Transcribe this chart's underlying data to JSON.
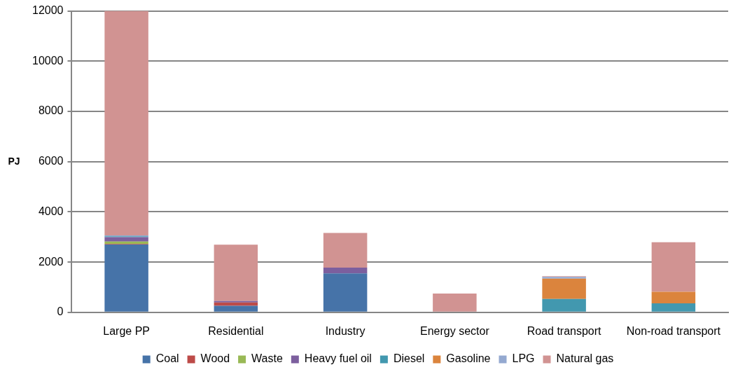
{
  "chart_data": {
    "type": "bar",
    "stacked": true,
    "ylabel": "PJ",
    "categories": [
      "Large PP",
      "Residential",
      "Industry",
      "Energy sector",
      "Road transport",
      "Non-road transport"
    ],
    "series": [
      {
        "name": "Coal",
        "color": "#4673a8",
        "values": [
          2700,
          260,
          1550,
          0,
          0,
          0
        ]
      },
      {
        "name": "Wood",
        "color": "#bd4b48",
        "values": [
          20,
          130,
          0,
          0,
          0,
          0
        ]
      },
      {
        "name": "Waste",
        "color": "#99b955",
        "values": [
          100,
          0,
          0,
          0,
          0,
          0
        ]
      },
      {
        "name": "Heavy fuel oil",
        "color": "#7c5f9e",
        "values": [
          170,
          60,
          230,
          0,
          0,
          0
        ]
      },
      {
        "name": "Diesel",
        "color": "#4298af",
        "values": [
          40,
          0,
          0,
          0,
          530,
          360
        ]
      },
      {
        "name": "Gasoline",
        "color": "#db843d",
        "values": [
          0,
          0,
          0,
          0,
          810,
          460
        ]
      },
      {
        "name": "LPG",
        "color": "#94a9d0",
        "values": [
          30,
          0,
          0,
          0,
          70,
          0
        ]
      },
      {
        "name": "Natural gas",
        "color": "#d19392",
        "values": [
          8940,
          2240,
          1380,
          750,
          30,
          1970
        ]
      }
    ],
    "ylim": [
      0,
      12000
    ],
    "yticks": [
      0,
      2000,
      4000,
      6000,
      8000,
      10000,
      12000
    ],
    "grid": "y",
    "legend": "bottom"
  }
}
